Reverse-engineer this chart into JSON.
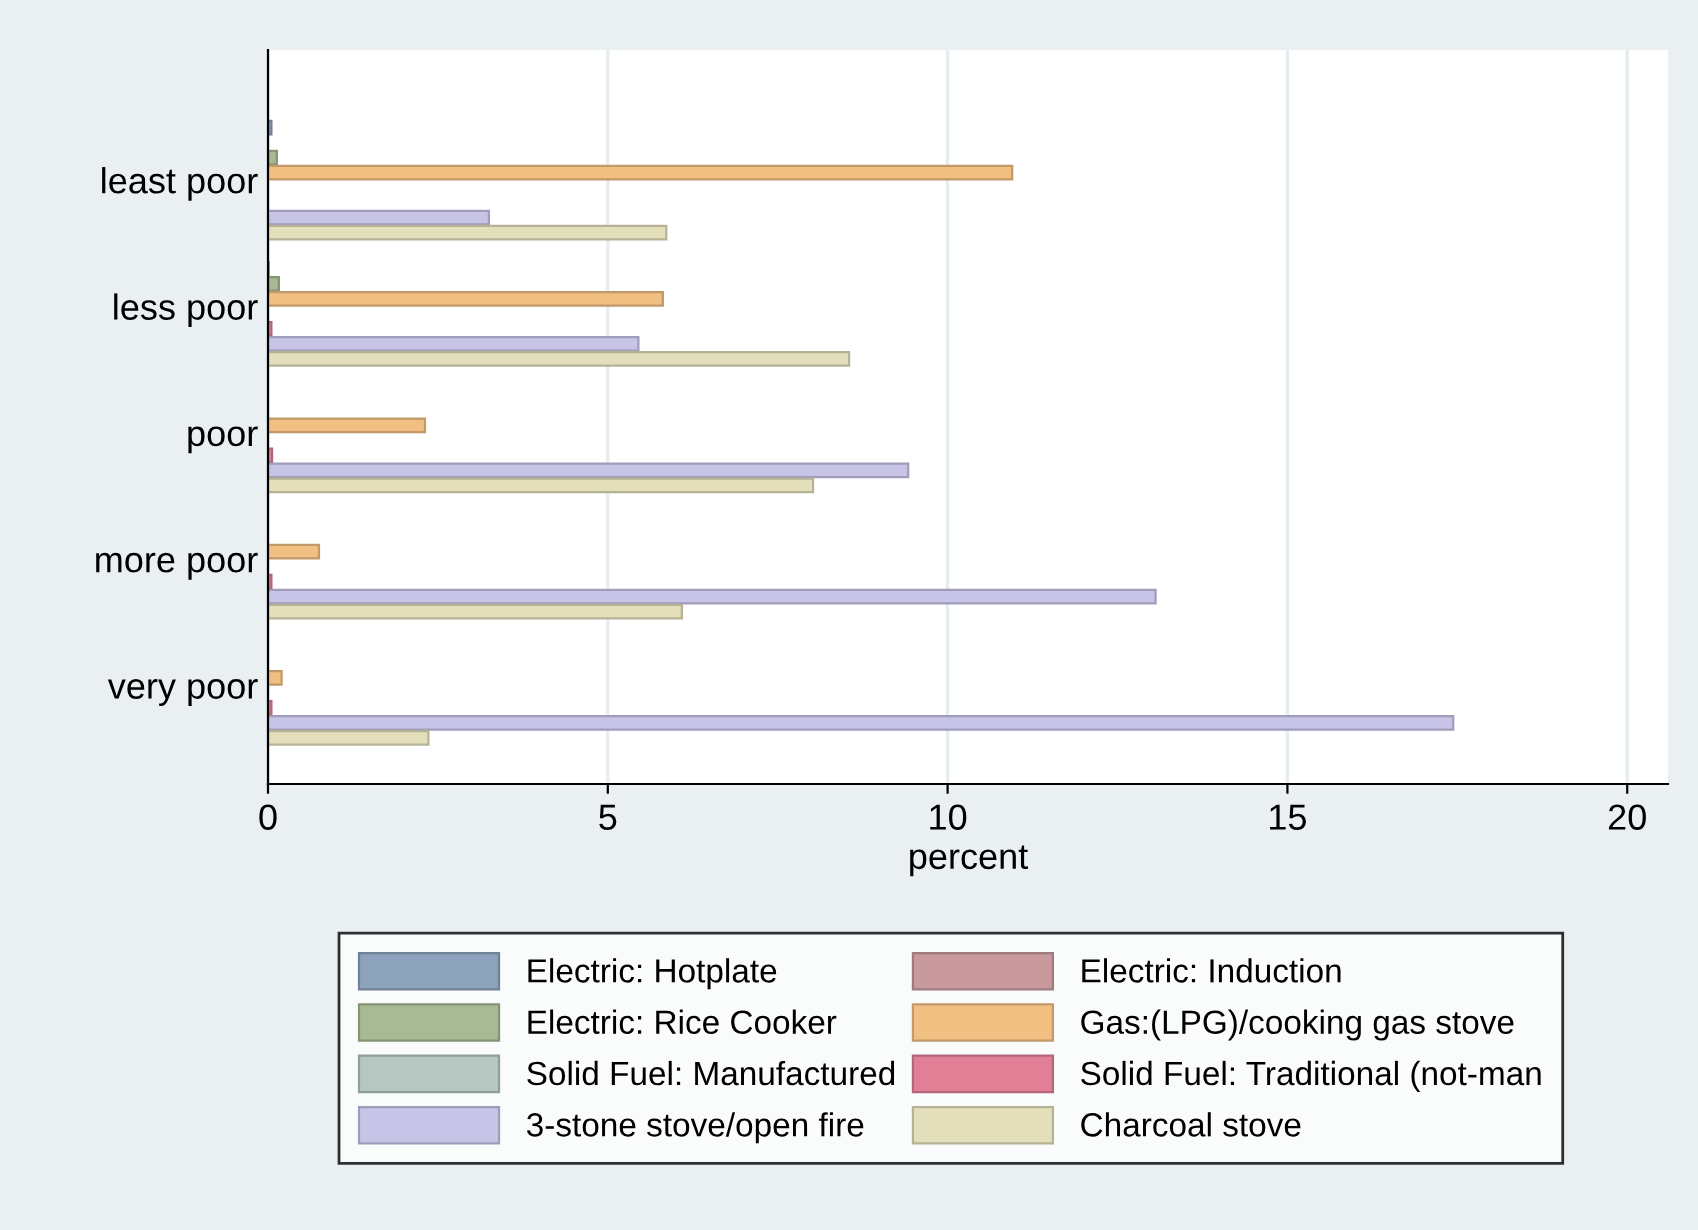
{
  "chart_data": {
    "type": "bar",
    "orientation": "horizontal",
    "xlabel": "percent",
    "categories": [
      "least poor",
      "less poor",
      "poor",
      "more poor",
      "very poor"
    ],
    "series": [
      {
        "name": "Electric: Hotplate",
        "color": "#8ca3bb",
        "values": [
          0.05,
          null,
          null,
          0,
          0
        ]
      },
      {
        "name": "Electric: Induction",
        "color": "#c89a9e",
        "values": [
          0,
          0.01,
          0,
          0,
          0
        ]
      },
      {
        "name": "Electric: Rice Cooker",
        "color": "#a8b993",
        "values": [
          0.13,
          0.16,
          null,
          0,
          0
        ]
      },
      {
        "name": "Gas:(LPG)/cooking gas stove",
        "color": "#f2bf83",
        "values": [
          10.95,
          5.81,
          2.31,
          0.75,
          0.2
        ]
      },
      {
        "name": "Solid Fuel: Manufactured",
        "color": "#b5c7c0",
        "values": [
          0,
          0,
          0,
          0,
          0
        ]
      },
      {
        "name": "Solid Fuel: Traditional (not-man",
        "color": "#e07f96",
        "values": [
          null,
          0.05,
          0.06,
          0.05,
          0.05
        ]
      },
      {
        "name": "3-stone stove/open fire",
        "color": "#c8c4e8",
        "values": [
          3.25,
          5.45,
          9.42,
          13.06,
          17.44
        ]
      },
      {
        "name": "Charcoal stove",
        "color": "#e4dfbb",
        "values": [
          5.86,
          8.55,
          8.02,
          6.09,
          2.36
        ]
      }
    ],
    "xlim": [
      0,
      20.6
    ],
    "xticks": [
      0,
      5,
      10,
      15,
      20
    ],
    "grid": "x",
    "legend": "bottom"
  }
}
